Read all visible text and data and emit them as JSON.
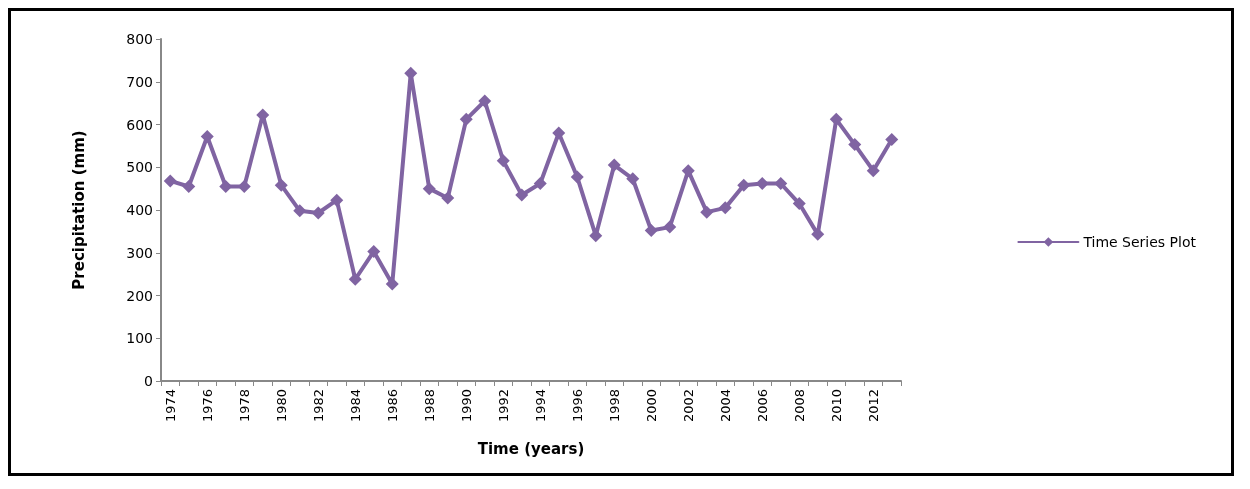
{
  "chart_data": {
    "type": "line",
    "xlabel": "Time (years)",
    "ylabel": "Precipitation (mm)",
    "categories": [
      "1974",
      null,
      "1976",
      null,
      "1978",
      null,
      "1980",
      null,
      "1982",
      null,
      "1984",
      null,
      "1986",
      null,
      "1988",
      null,
      "1990",
      null,
      "1992",
      null,
      "1994",
      null,
      "1996",
      null,
      "1998",
      null,
      "2000",
      null,
      "2002",
      null,
      "2004",
      null,
      "2006",
      null,
      "2008",
      null,
      "2010",
      null,
      "2012",
      null
    ],
    "series": [
      {
        "name": "Time Series Plot",
        "color": "#8064a2",
        "values": [
          468,
          455,
          572,
          455,
          455,
          622,
          458,
          398,
          393,
          423,
          238,
          303,
          227,
          720,
          450,
          428,
          612,
          655,
          515,
          435,
          462,
          580,
          477,
          340,
          505,
          473,
          352,
          360,
          492,
          395,
          405,
          458,
          462,
          462,
          415,
          343,
          612,
          553,
          492,
          565
        ]
      }
    ],
    "ylim": [
      0,
      800
    ],
    "yticks": [
      0,
      100,
      200,
      300,
      400,
      500,
      600,
      700,
      800
    ],
    "grid": false,
    "legend": "right",
    "marker": "diamond",
    "line_style": "solid"
  }
}
